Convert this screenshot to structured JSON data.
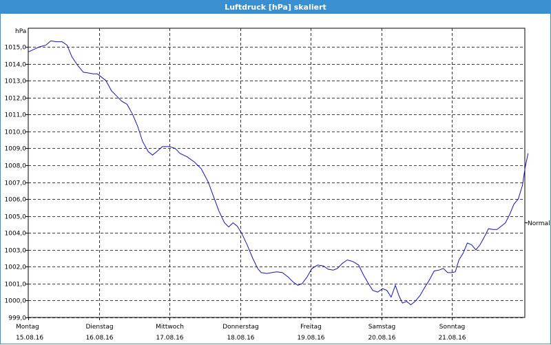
{
  "window": {
    "title": "Luftdruck [hPa] skaliert"
  },
  "colors": {
    "titlebar": "#3a8fd0",
    "line": "#1010c8",
    "grid": "#000000"
  },
  "chart_data": {
    "type": "line",
    "title": "Luftdruck [hPa] skaliert",
    "ylabel": "hPa",
    "xlabel": "",
    "ylim": [
      999.0,
      1016.1
    ],
    "xlim": [
      0,
      7.08
    ],
    "grid": true,
    "yticks": [
      "999,0",
      "1000,0",
      "1001,0",
      "1002,0",
      "1003,0",
      "1004,0",
      "1005,0",
      "1006,0",
      "1007,0",
      "1008,0",
      "1009,0",
      "1010,0",
      "1011,0",
      "1012,0",
      "1013,0",
      "1014,0",
      "1015,0"
    ],
    "xticks": [
      {
        "day": "Montag",
        "date": "15.08.16"
      },
      {
        "day": "Dienstag",
        "date": "16.08.16"
      },
      {
        "day": "Mittwoch",
        "date": "17.08.16"
      },
      {
        "day": "Donnerstag",
        "date": "18.08.16"
      },
      {
        "day": "Freitag",
        "date": "19.08.16"
      },
      {
        "day": "Samstag",
        "date": "20.08.16"
      },
      {
        "day": "Sonntag",
        "date": "21.08.16"
      }
    ],
    "reference_line": {
      "label": "Normal",
      "value": 1004.6
    },
    "series": [
      {
        "values": [
          [
            0.0,
            1014.7
          ],
          [
            0.08,
            1014.85
          ],
          [
            0.16,
            1015.0
          ],
          [
            0.25,
            1015.1
          ],
          [
            0.32,
            1015.35
          ],
          [
            0.4,
            1015.3
          ],
          [
            0.48,
            1015.3
          ],
          [
            0.55,
            1015.1
          ],
          [
            0.62,
            1014.4
          ],
          [
            0.7,
            1013.9
          ],
          [
            0.78,
            1013.5
          ],
          [
            0.86,
            1013.45
          ],
          [
            0.92,
            1013.4
          ],
          [
            0.98,
            1013.4
          ],
          [
            1.04,
            1013.2
          ],
          [
            1.1,
            1013.0
          ],
          [
            1.18,
            1012.4
          ],
          [
            1.25,
            1012.1
          ],
          [
            1.32,
            1011.8
          ],
          [
            1.4,
            1011.6
          ],
          [
            1.48,
            1011.0
          ],
          [
            1.55,
            1010.3
          ],
          [
            1.62,
            1009.4
          ],
          [
            1.7,
            1008.8
          ],
          [
            1.76,
            1008.6
          ],
          [
            1.82,
            1008.8
          ],
          [
            1.9,
            1009.1
          ],
          [
            2.0,
            1009.1
          ],
          [
            2.08,
            1009.0
          ],
          [
            2.15,
            1008.7
          ],
          [
            2.25,
            1008.5
          ],
          [
            2.35,
            1008.2
          ],
          [
            2.45,
            1007.8
          ],
          [
            2.55,
            1007.0
          ],
          [
            2.62,
            1006.2
          ],
          [
            2.7,
            1005.3
          ],
          [
            2.78,
            1004.6
          ],
          [
            2.84,
            1004.35
          ],
          [
            2.9,
            1004.6
          ],
          [
            2.96,
            1004.4
          ],
          [
            3.02,
            1004.0
          ],
          [
            3.1,
            1003.3
          ],
          [
            3.18,
            1002.5
          ],
          [
            3.25,
            1001.9
          ],
          [
            3.3,
            1001.65
          ],
          [
            3.38,
            1001.6
          ],
          [
            3.45,
            1001.65
          ],
          [
            3.52,
            1001.7
          ],
          [
            3.6,
            1001.65
          ],
          [
            3.68,
            1001.4
          ],
          [
            3.75,
            1001.1
          ],
          [
            3.82,
            1000.9
          ],
          [
            3.88,
            1001.0
          ],
          [
            3.95,
            1001.4
          ],
          [
            4.02,
            1001.9
          ],
          [
            4.1,
            1002.1
          ],
          [
            4.18,
            1002.05
          ],
          [
            4.25,
            1001.85
          ],
          [
            4.32,
            1001.8
          ],
          [
            4.38,
            1001.9
          ],
          [
            4.45,
            1002.2
          ],
          [
            4.52,
            1002.4
          ],
          [
            4.6,
            1002.3
          ],
          [
            4.68,
            1002.1
          ],
          [
            4.75,
            1001.5
          ],
          [
            4.82,
            1001.0
          ],
          [
            4.88,
            1000.6
          ],
          [
            4.95,
            1000.5
          ],
          [
            5.02,
            1000.7
          ],
          [
            5.08,
            1000.6
          ],
          [
            5.14,
            1000.2
          ],
          [
            5.2,
            1000.9
          ],
          [
            5.25,
            1000.3
          ],
          [
            5.3,
            999.85
          ],
          [
            5.36,
            999.95
          ],
          [
            5.42,
            999.75
          ],
          [
            5.48,
            999.95
          ],
          [
            5.55,
            1000.3
          ],
          [
            5.62,
            1000.8
          ],
          [
            5.68,
            1001.2
          ],
          [
            5.75,
            1001.75
          ],
          [
            5.82,
            1001.8
          ],
          [
            5.88,
            1001.9
          ],
          [
            5.94,
            1001.65
          ],
          [
            6.0,
            1001.65
          ],
          [
            6.05,
            1001.7
          ],
          [
            6.1,
            1002.4
          ],
          [
            6.16,
            1002.8
          ],
          [
            6.22,
            1003.4
          ],
          [
            6.28,
            1003.3
          ],
          [
            6.34,
            1003.0
          ],
          [
            6.4,
            1003.3
          ],
          [
            6.46,
            1003.75
          ],
          [
            6.52,
            1004.25
          ],
          [
            6.58,
            1004.2
          ],
          [
            6.64,
            1004.2
          ],
          [
            6.7,
            1004.4
          ],
          [
            6.76,
            1004.6
          ],
          [
            6.82,
            1005.1
          ],
          [
            6.88,
            1005.7
          ],
          [
            6.94,
            1006.0
          ],
          [
            7.0,
            1006.8
          ],
          [
            7.04,
            1007.9
          ],
          [
            7.08,
            1008.7
          ]
        ]
      }
    ]
  }
}
